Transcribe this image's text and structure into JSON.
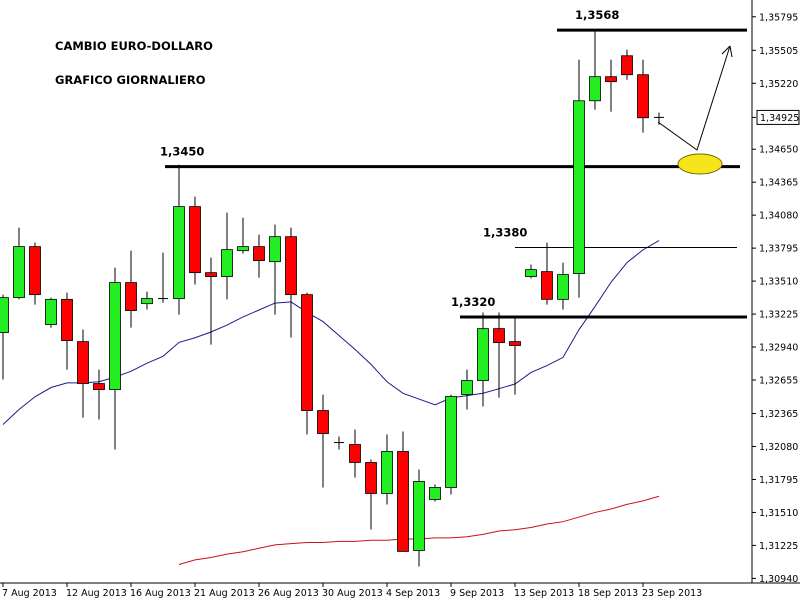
{
  "chart_data": {
    "type": "candlestick",
    "annotations": [
      "CAMBIO EURO-DOLLARO",
      "GRAFICO GIORNALIERO"
    ],
    "categories": [
      "7 Aug 2013",
      null,
      null,
      null,
      "12 Aug 2013",
      null,
      null,
      null,
      "16 Aug 2013",
      null,
      null,
      null,
      "21 Aug 2013",
      null,
      null,
      null,
      "26 Aug 2013",
      null,
      null,
      null,
      "30 Aug 2013",
      null,
      null,
      null,
      "4 Sep 2013",
      null,
      null,
      null,
      "9 Sep 2013",
      null,
      null,
      null,
      "13 Sep 2013",
      null,
      null,
      null,
      "18 Sep 2013",
      null,
      null,
      null,
      "23 Sep 2013",
      null
    ],
    "open": [
      1.33065,
      1.33367,
      1.33808,
      1.33134,
      1.33352,
      1.32987,
      1.32624,
      1.32572,
      1.33497,
      1.33315,
      1.33359,
      1.33359,
      1.34154,
      1.33583,
      1.33549,
      1.33773,
      1.33808,
      1.33678,
      1.33894,
      1.33393,
      1.32391,
      1.32114,
      1.32097,
      1.31942,
      1.31674,
      1.32037,
      1.31181,
      1.31622,
      1.31726,
      1.32529,
      1.3265,
      1.33099,
      1.32987,
      1.33549,
      1.33592,
      1.33352,
      1.33575,
      1.35069,
      1.35277,
      1.35458,
      1.35294,
      1.34925
    ],
    "high": [
      1.33393,
      1.33972,
      1.33842,
      1.33367,
      1.3341,
      1.33091,
      1.32745,
      1.33626,
      1.33773,
      1.33419,
      1.33756,
      1.34516,
      1.3424,
      1.33713,
      1.34102,
      1.34058,
      1.33912,
      1.33998,
      1.33972,
      1.3341,
      1.32529,
      1.32166,
      1.32227,
      1.31968,
      1.32184,
      1.3221,
      1.31881,
      1.31752,
      1.32529,
      1.32745,
      1.33238,
      1.33238,
      1.33203,
      1.33652,
      1.33842,
      1.3367,
      1.35424,
      1.3568,
      1.35424,
      1.3551,
      1.35424,
      1.34966
    ],
    "low": [
      1.32659,
      1.33352,
      1.33307,
      1.33108,
      1.32745,
      1.3233,
      1.32313,
      1.32054,
      1.33108,
      1.33264,
      1.33324,
      1.3322,
      1.3348,
      1.32961,
      1.33352,
      1.33747,
      1.3354,
      1.3322,
      1.33022,
      1.32184,
      1.31726,
      1.32054,
      1.31812,
      1.31363,
      1.31579,
      1.31173,
      1.31043,
      1.31605,
      1.31665,
      1.324,
      1.32426,
      1.32503,
      1.32529,
      1.33532,
      1.33307,
      1.33264,
      1.33367,
      1.34992,
      1.34974,
      1.35251,
      1.34793,
      1.34862
    ],
    "close": [
      1.33367,
      1.33808,
      1.33393,
      1.33352,
      1.32996,
      1.32624,
      1.32572,
      1.33497,
      1.33255,
      1.33359,
      1.33359,
      1.34154,
      1.33583,
      1.33549,
      1.33782,
      1.33808,
      1.33687,
      1.33894,
      1.33393,
      1.32391,
      1.32192,
      1.32114,
      1.31942,
      1.31674,
      1.32037,
      1.31173,
      1.31778,
      1.31726,
      1.32512,
      1.3265,
      1.33099,
      1.32978,
      1.32953,
      1.33609,
      1.33352,
      1.33566,
      1.35069,
      1.35277,
      1.35234,
      1.35294,
      1.34922,
      1.34925
    ],
    "up_color": "#22ee22",
    "down_color": "#ff0000",
    "moving_averages": [
      {
        "color": "#1c1c8c",
        "values": [
          1.3227,
          1.324,
          1.3251,
          1.3259,
          1.3263,
          1.3263,
          1.3264,
          1.3268,
          1.3273,
          1.328,
          1.3286,
          1.3298,
          1.3302,
          1.3307,
          1.3313,
          1.332,
          1.3326,
          1.3332,
          1.3333,
          1.3324,
          1.3316,
          1.3304,
          1.3292,
          1.3279,
          1.3264,
          1.3254,
          1.3249,
          1.3244,
          1.325,
          1.3252,
          1.3254,
          1.3258,
          1.3262,
          1.3272,
          1.3278,
          1.3285,
          1.3309,
          1.3329,
          1.335,
          1.3367,
          1.3378,
          1.3386
        ]
      },
      {
        "color": "#cc1111",
        "values": [
          null,
          null,
          null,
          null,
          null,
          null,
          null,
          null,
          null,
          null,
          null,
          1.3106,
          1.311,
          1.3112,
          1.3115,
          1.3117,
          1.312,
          1.3123,
          1.3124,
          1.3125,
          1.3125,
          1.3126,
          1.3126,
          1.3127,
          1.3127,
          1.3128,
          1.3128,
          1.3129,
          1.3129,
          1.313,
          1.3132,
          1.3135,
          1.3136,
          1.3138,
          1.3141,
          1.3143,
          1.3147,
          1.3151,
          1.3154,
          1.3158,
          1.3161,
          1.3165
        ]
      }
    ],
    "levels": [
      {
        "value": 1.3568,
        "label": "1,3568"
      },
      {
        "value": 1.345,
        "label": "1,3450"
      },
      {
        "value": 1.338,
        "label": "1,3380"
      },
      {
        "value": 1.332,
        "label": "1,3320"
      }
    ],
    "last_price": {
      "value": 1.34925,
      "label": "1,34925"
    },
    "ylim": [
      1.309,
      1.3594
    ],
    "yticks": [
      {
        "value": 1.35795,
        "label": "1,35795"
      },
      {
        "value": 1.35505,
        "label": "1,35505"
      },
      {
        "value": 1.3522,
        "label": "1,35220"
      },
      {
        "value": 1.3465,
        "label": "1,34650"
      },
      {
        "value": 1.34365,
        "label": "1,34365"
      },
      {
        "value": 1.3408,
        "label": "1,34080"
      },
      {
        "value": 1.33795,
        "label": "1,33795"
      },
      {
        "value": 1.3351,
        "label": "1,33510"
      },
      {
        "value": 1.33225,
        "label": "1,33225"
      },
      {
        "value": 1.3294,
        "label": "1,32940"
      },
      {
        "value": 1.32655,
        "label": "1,32655"
      },
      {
        "value": 1.32365,
        "label": "1,32365"
      },
      {
        "value": 1.3208,
        "label": "1,32080"
      },
      {
        "value": 1.31795,
        "label": "1,31795"
      },
      {
        "value": 1.3151,
        "label": "1,31510"
      },
      {
        "value": 1.31225,
        "label": "1,31225"
      },
      {
        "value": 1.3094,
        "label": "1,30940"
      }
    ]
  }
}
